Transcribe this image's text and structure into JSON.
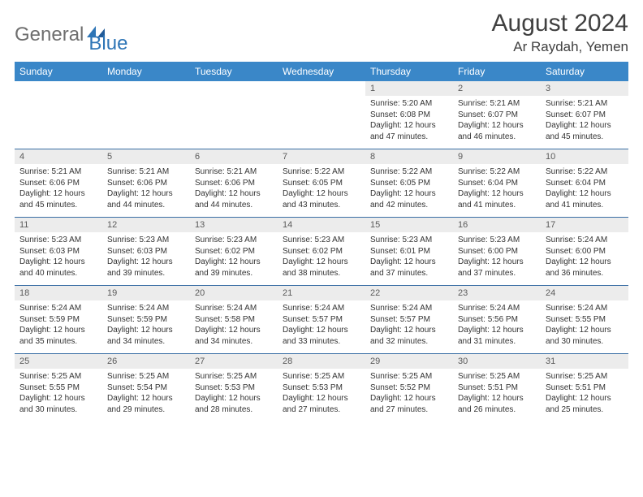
{
  "brand": {
    "name1": "General",
    "name2": "Blue"
  },
  "title": {
    "month": "August 2024",
    "location": "Ar Raydah, Yemen"
  },
  "colors": {
    "header_bg": "#3a87c8",
    "header_text": "#ffffff",
    "daynum_bg": "#ececec",
    "sep_border": "#3a6ea5",
    "logo_gray": "#6e6e6e",
    "logo_blue": "#2e75b6"
  },
  "day_headers": [
    "Sunday",
    "Monday",
    "Tuesday",
    "Wednesday",
    "Thursday",
    "Friday",
    "Saturday"
  ],
  "weeks": [
    [
      null,
      null,
      null,
      null,
      {
        "n": "1",
        "sunrise": "5:20 AM",
        "sunset": "6:08 PM",
        "day_h": 12,
        "day_m": 47
      },
      {
        "n": "2",
        "sunrise": "5:21 AM",
        "sunset": "6:07 PM",
        "day_h": 12,
        "day_m": 46
      },
      {
        "n": "3",
        "sunrise": "5:21 AM",
        "sunset": "6:07 PM",
        "day_h": 12,
        "day_m": 45
      }
    ],
    [
      {
        "n": "4",
        "sunrise": "5:21 AM",
        "sunset": "6:06 PM",
        "day_h": 12,
        "day_m": 45
      },
      {
        "n": "5",
        "sunrise": "5:21 AM",
        "sunset": "6:06 PM",
        "day_h": 12,
        "day_m": 44
      },
      {
        "n": "6",
        "sunrise": "5:21 AM",
        "sunset": "6:06 PM",
        "day_h": 12,
        "day_m": 44
      },
      {
        "n": "7",
        "sunrise": "5:22 AM",
        "sunset": "6:05 PM",
        "day_h": 12,
        "day_m": 43
      },
      {
        "n": "8",
        "sunrise": "5:22 AM",
        "sunset": "6:05 PM",
        "day_h": 12,
        "day_m": 42
      },
      {
        "n": "9",
        "sunrise": "5:22 AM",
        "sunset": "6:04 PM",
        "day_h": 12,
        "day_m": 41
      },
      {
        "n": "10",
        "sunrise": "5:22 AM",
        "sunset": "6:04 PM",
        "day_h": 12,
        "day_m": 41
      }
    ],
    [
      {
        "n": "11",
        "sunrise": "5:23 AM",
        "sunset": "6:03 PM",
        "day_h": 12,
        "day_m": 40
      },
      {
        "n": "12",
        "sunrise": "5:23 AM",
        "sunset": "6:03 PM",
        "day_h": 12,
        "day_m": 39
      },
      {
        "n": "13",
        "sunrise": "5:23 AM",
        "sunset": "6:02 PM",
        "day_h": 12,
        "day_m": 39
      },
      {
        "n": "14",
        "sunrise": "5:23 AM",
        "sunset": "6:02 PM",
        "day_h": 12,
        "day_m": 38
      },
      {
        "n": "15",
        "sunrise": "5:23 AM",
        "sunset": "6:01 PM",
        "day_h": 12,
        "day_m": 37
      },
      {
        "n": "16",
        "sunrise": "5:23 AM",
        "sunset": "6:00 PM",
        "day_h": 12,
        "day_m": 37
      },
      {
        "n": "17",
        "sunrise": "5:24 AM",
        "sunset": "6:00 PM",
        "day_h": 12,
        "day_m": 36
      }
    ],
    [
      {
        "n": "18",
        "sunrise": "5:24 AM",
        "sunset": "5:59 PM",
        "day_h": 12,
        "day_m": 35
      },
      {
        "n": "19",
        "sunrise": "5:24 AM",
        "sunset": "5:59 PM",
        "day_h": 12,
        "day_m": 34
      },
      {
        "n": "20",
        "sunrise": "5:24 AM",
        "sunset": "5:58 PM",
        "day_h": 12,
        "day_m": 34
      },
      {
        "n": "21",
        "sunrise": "5:24 AM",
        "sunset": "5:57 PM",
        "day_h": 12,
        "day_m": 33
      },
      {
        "n": "22",
        "sunrise": "5:24 AM",
        "sunset": "5:57 PM",
        "day_h": 12,
        "day_m": 32
      },
      {
        "n": "23",
        "sunrise": "5:24 AM",
        "sunset": "5:56 PM",
        "day_h": 12,
        "day_m": 31
      },
      {
        "n": "24",
        "sunrise": "5:24 AM",
        "sunset": "5:55 PM",
        "day_h": 12,
        "day_m": 30
      }
    ],
    [
      {
        "n": "25",
        "sunrise": "5:25 AM",
        "sunset": "5:55 PM",
        "day_h": 12,
        "day_m": 30
      },
      {
        "n": "26",
        "sunrise": "5:25 AM",
        "sunset": "5:54 PM",
        "day_h": 12,
        "day_m": 29
      },
      {
        "n": "27",
        "sunrise": "5:25 AM",
        "sunset": "5:53 PM",
        "day_h": 12,
        "day_m": 28
      },
      {
        "n": "28",
        "sunrise": "5:25 AM",
        "sunset": "5:53 PM",
        "day_h": 12,
        "day_m": 27
      },
      {
        "n": "29",
        "sunrise": "5:25 AM",
        "sunset": "5:52 PM",
        "day_h": 12,
        "day_m": 27
      },
      {
        "n": "30",
        "sunrise": "5:25 AM",
        "sunset": "5:51 PM",
        "day_h": 12,
        "day_m": 26
      },
      {
        "n": "31",
        "sunrise": "5:25 AM",
        "sunset": "5:51 PM",
        "day_h": 12,
        "day_m": 25
      }
    ]
  ],
  "labels": {
    "sunrise_prefix": "Sunrise: ",
    "sunset_prefix": "Sunset: ",
    "daylight_prefix": "Daylight: ",
    "hours_word": " hours",
    "and_word": "and ",
    "minutes_word": " minutes."
  }
}
